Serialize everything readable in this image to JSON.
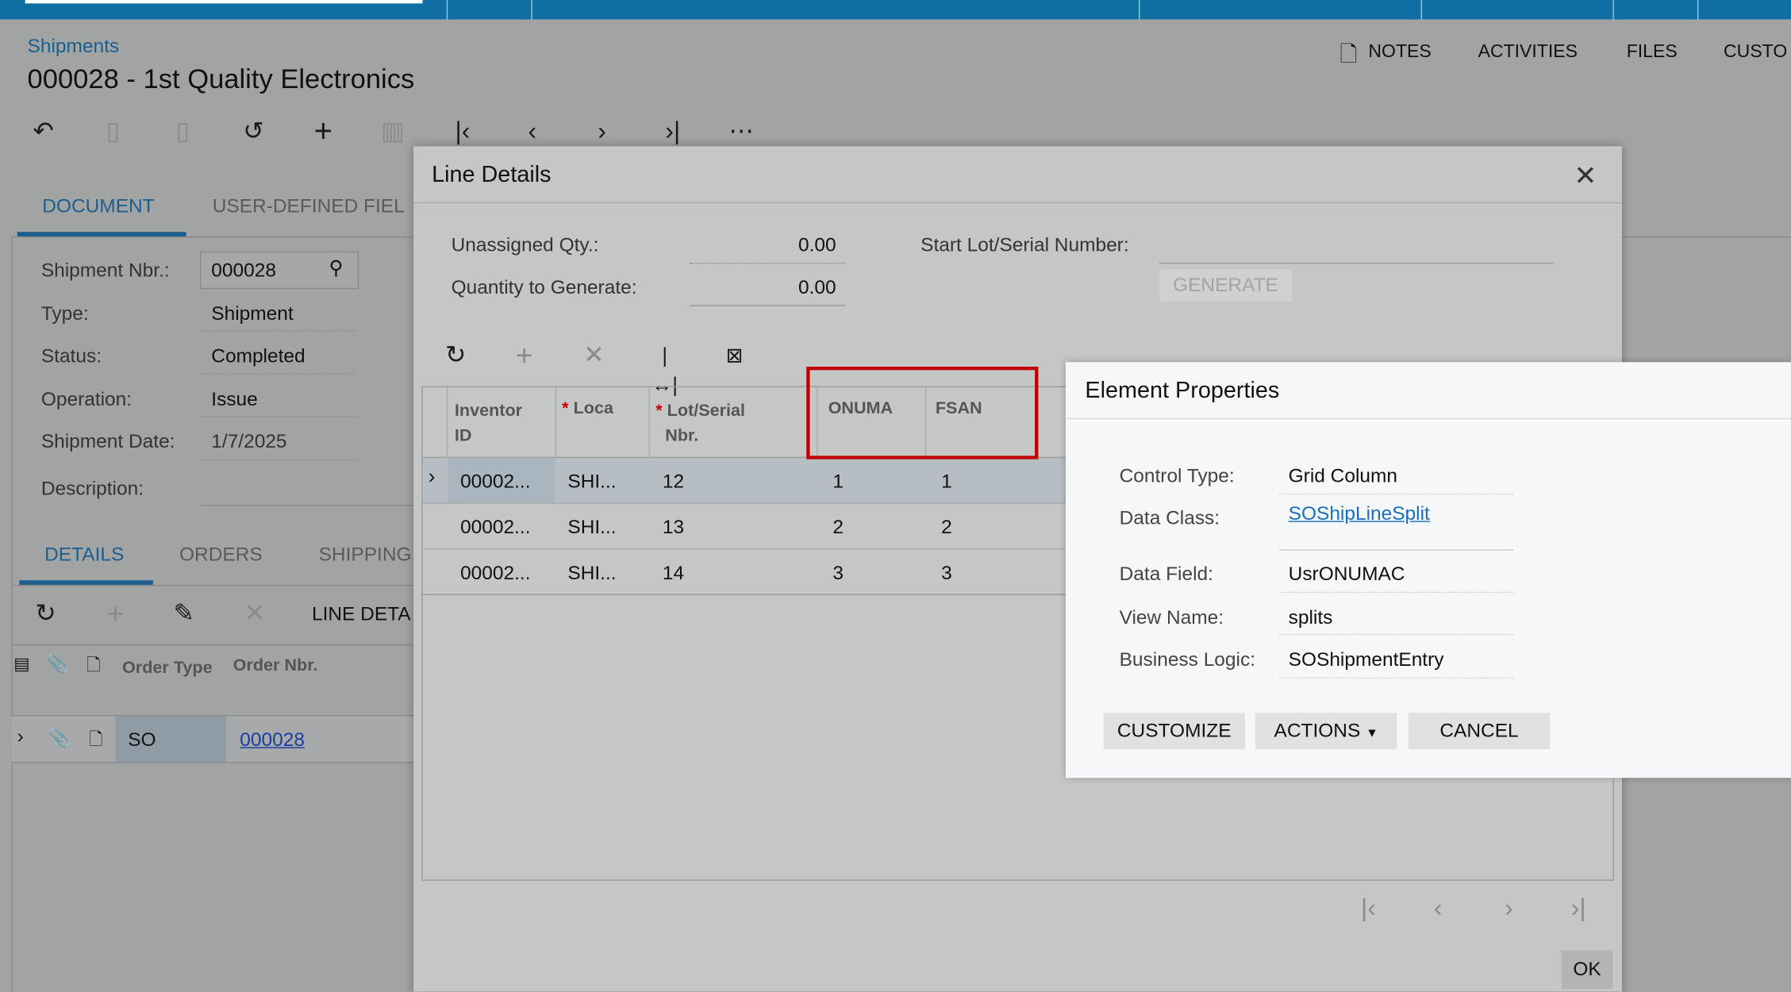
{
  "colors": {
    "topbar": "#0f6fa3",
    "accent": "#1c5f8f",
    "highlight_box": "#c00000",
    "link": "#1b6fc0"
  },
  "header": {
    "breadcrumb": "Shipments",
    "title": "000028 - 1st Quality Electronics"
  },
  "toolbar": {
    "icons": [
      "back-icon",
      "save-close-icon",
      "save-icon",
      "undo-icon",
      "add-icon",
      "delete-icon",
      "first-icon",
      "prev-icon",
      "next-icon",
      "last-icon",
      "more-icon"
    ]
  },
  "top_right": {
    "notes": "NOTES",
    "activities": "ACTIVITIES",
    "files": "FILES",
    "customization": "CUSTO"
  },
  "tabs": {
    "document": "DOCUMENT",
    "user_defined": "USER-DEFINED FIEL"
  },
  "form": {
    "shipment_nbr": {
      "label": "Shipment Nbr.:",
      "value": "000028"
    },
    "type": {
      "label": "Type:",
      "value": "Shipment"
    },
    "status": {
      "label": "Status:",
      "value": "Completed"
    },
    "operation": {
      "label": "Operation:",
      "value": "Issue"
    },
    "shipment_date": {
      "label": "Shipment Date:",
      "value": "1/7/2025"
    },
    "description": {
      "label": "Description:",
      "value": ""
    }
  },
  "details_tabs": {
    "details": "DETAILS",
    "orders": "ORDERS",
    "shipping": "SHIPPING"
  },
  "details_toolbar": {
    "line_details": "LINE DETA"
  },
  "orders_grid": {
    "headers": {
      "order_type": "Order Type",
      "order_nbr": "Order Nbr."
    },
    "rows": [
      {
        "order_type": "SO",
        "order_nbr": "000028"
      }
    ]
  },
  "line_details": {
    "title": "Line Details",
    "unassigned_qty": {
      "label": "Unassigned Qty.:",
      "value": "0.00"
    },
    "qty_to_generate": {
      "label": "Quantity to Generate:",
      "value": "0.00"
    },
    "start_lot": {
      "label": "Start Lot/Serial Number:",
      "value": ""
    },
    "generate": "GENERATE",
    "headers": {
      "inventory_id_1": "Inventor",
      "inventory_id_2": "ID",
      "location": "Loca",
      "lot_1": "Lot/Serial",
      "lot_2": "Nbr.",
      "onuma": "ONUMA",
      "fsan": "FSAN"
    },
    "rows": [
      {
        "inventory": "00002...",
        "location": "SHI...",
        "lot": "12",
        "onuma": "1",
        "fsan": "1"
      },
      {
        "inventory": "00002...",
        "location": "SHI...",
        "lot": "13",
        "onuma": "2",
        "fsan": "2"
      },
      {
        "inventory": "00002...",
        "location": "SHI...",
        "lot": "14",
        "onuma": "3",
        "fsan": "3"
      }
    ],
    "ok": "OK"
  },
  "element_properties": {
    "title": "Element Properties",
    "control_type": {
      "label": "Control Type:",
      "value": "Grid Column"
    },
    "data_class": {
      "label": "Data Class:",
      "value": "SOShipLineSplit"
    },
    "data_field": {
      "label": "Data Field:",
      "value": "UsrONUMAC"
    },
    "view_name": {
      "label": "View Name:",
      "value": "splits"
    },
    "business_logic": {
      "label": "Business Logic:",
      "value": "SOShipmentEntry"
    },
    "customize": "CUSTOMIZE",
    "actions": "ACTIONS",
    "cancel": "CANCEL"
  }
}
